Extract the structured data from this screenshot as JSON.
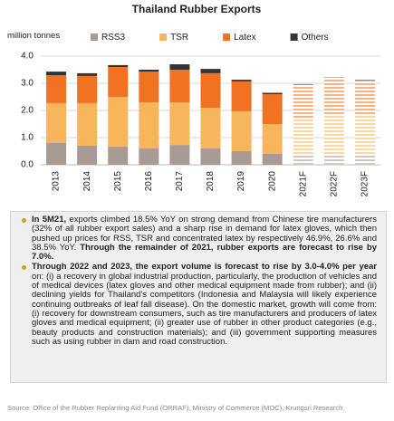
{
  "chart_data": {
    "type": "stacked_bar",
    "title": "Thailand Rubber Exports",
    "y_label": "million tonnes",
    "categories": [
      "2013",
      "2014",
      "2015",
      "2016",
      "2017",
      "2018",
      "2019",
      "2020",
      "2021F",
      "2022F",
      "2023F"
    ],
    "hatched": [
      false,
      false,
      false,
      false,
      false,
      false,
      false,
      false,
      true,
      true,
      true
    ],
    "series": [
      {
        "name": "RSS3",
        "color": "#a89a95",
        "values": [
          0.8,
          0.7,
          0.67,
          0.6,
          0.73,
          0.6,
          0.5,
          0.4,
          0.4,
          0.4,
          0.4
        ]
      },
      {
        "name": "TSR",
        "color": "#f7b55c",
        "values": [
          1.47,
          1.57,
          1.83,
          1.7,
          1.57,
          1.5,
          1.47,
          1.1,
          1.3,
          1.4,
          1.4
        ]
      },
      {
        "name": "Latex",
        "color": "#f07222",
        "values": [
          1.03,
          1.0,
          1.1,
          1.13,
          1.2,
          1.27,
          1.1,
          1.1,
          1.2,
          1.35,
          1.3
        ]
      },
      {
        "name": "Others",
        "color": "#333333",
        "values": [
          0.13,
          0.1,
          0.07,
          0.07,
          0.2,
          0.16,
          0.06,
          0.05,
          0.07,
          0.07,
          0.07
        ]
      }
    ],
    "ylim": [
      0,
      4
    ],
    "yticks": [
      {
        "value": 0,
        "label": "0.0"
      },
      {
        "value": 1,
        "label": "1.0"
      },
      {
        "value": 2,
        "label": "2.0"
      },
      {
        "value": 3,
        "label": "3.0"
      },
      {
        "value": 4,
        "label": "4.0"
      }
    ],
    "grid": true
  },
  "notes": [
    [
      {
        "text": "In 5M21,",
        "bold": true
      },
      {
        "text": " exports climbed 18.5% YoY on strong demand from Chinese tire manufacturers (32% of all rubber export sales) and a sharp rise in demand for latex gloves, which then pushed up prices for RSS, TSR and concentrated latex by respectively 46.9%, 26.6% and 38.5% YoY. ",
        "bold": false
      },
      {
        "text": "Through the remainder of 2021, rubber exports are forecast to rise by 7.0%.",
        "bold": true
      }
    ],
    [
      {
        "text": "Through 2022 and 2023, the export volume is forecast to rise by 3.0-4.0% per year",
        "bold": true
      },
      {
        "text": " on: (i) a recovery in global industrial production, particularly, the production of vehicles and of medical devices (latex gloves and other medical equipment made from rubber); and (ii) declining yields for Thailand's competitors (Indonesia and Malaysia will likely experience continuing outbreaks of leaf fall disease). On the domestic market, growth will come from: (i) recovery for downstream consumers, such as tire manufacturers and producers of latex gloves and medical equipment; (ii) greater use of rubber in other product categories (e.g., beauty products and construction materials); and (iii) government supporting measures such as using rubber in dam and road construction.",
        "bold": false
      }
    ]
  ],
  "source": "Source: Office of the Rubber Replanting Aid Fund (ORRAF), Ministry of Commerce (MOC), Krungsri Research"
}
